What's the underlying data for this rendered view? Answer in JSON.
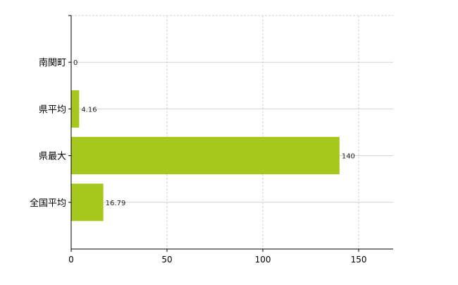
{
  "chart_data": {
    "type": "bar",
    "orientation": "horizontal",
    "categories": [
      "南関町",
      "県平均",
      "県最大",
      "全国平均"
    ],
    "values": [
      0,
      4.16,
      140,
      16.79
    ],
    "value_labels": [
      "0",
      "4.16",
      "140",
      "16.79"
    ],
    "xlim": [
      0,
      168
    ],
    "xticks": [
      0,
      50,
      100,
      150
    ],
    "xtick_labels": [
      "0",
      "50",
      "100",
      "150"
    ],
    "grid": true,
    "title": "",
    "xlabel": "",
    "ylabel": "",
    "bar_color": "#a6c81e",
    "grid_color": "#d3d3d3"
  }
}
